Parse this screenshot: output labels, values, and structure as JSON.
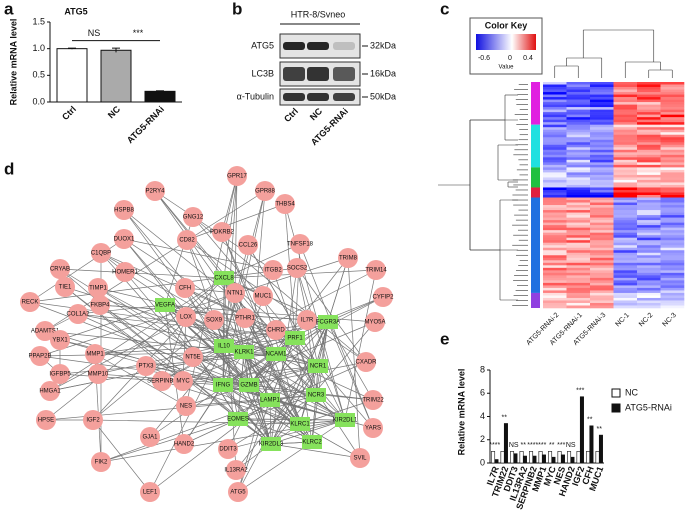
{
  "panel_labels": [
    "a",
    "b",
    "c",
    "d",
    "e"
  ],
  "chart_data": [
    {
      "type": "bar",
      "title": "ATG5",
      "ylabel": "Relative mRNA level",
      "categories": [
        "Ctrl",
        "NC",
        "ATG5-RNAi"
      ],
      "values": [
        1.0,
        0.97,
        0.2
      ],
      "errors": [
        0.01,
        0.04,
        0.01
      ],
      "colors": [
        "#ffffff",
        "#aaaaaa",
        "#111111"
      ],
      "ylim": [
        0,
        1.5
      ],
      "yticks": [
        {
          "value": 0,
          "label": "0.0"
        },
        {
          "value": 0.5,
          "label": "0.5"
        },
        {
          "value": 1.0,
          "label": "1.0"
        },
        {
          "value": 1.5,
          "label": "1.5"
        }
      ],
      "annotations": [
        "NS",
        "***"
      ]
    },
    {
      "type": "grouped-bar",
      "ylabel": "Relative mRNA level",
      "categories": [
        "IL7R",
        "TRIM22",
        "DDIT3",
        "IL13RA2",
        "SERPINB2",
        "MMP1",
        "MYC",
        "NES",
        "HAND2",
        "IGF2",
        "CFH",
        "MUC1"
      ],
      "series": [
        {
          "name": "NC",
          "color": "#ffffff",
          "values": [
            1,
            1,
            1,
            1,
            1,
            1,
            1,
            1,
            1,
            1,
            1,
            1
          ]
        },
        {
          "name": "ATG5-RNAi",
          "color": "#111111",
          "values": [
            0.3,
            3.4,
            0.8,
            0.6,
            0.6,
            0.7,
            0.5,
            0.7,
            0.5,
            5.7,
            3.2,
            2.4
          ]
        }
      ],
      "significance": [
        "****",
        "**",
        "NS",
        "**",
        "****",
        "***",
        "**",
        "***",
        "NS",
        "***",
        "**",
        "**"
      ],
      "ylim": [
        0,
        8
      ],
      "yticks": [
        0,
        2,
        4,
        6,
        8
      ],
      "legend": "right"
    }
  ],
  "blot": {
    "title": "HTR-8/Svneo",
    "rows": [
      "ATG5",
      "LC3B",
      "α-Tubulin"
    ],
    "sizes": [
      "32kDa",
      "16kDa",
      "50kDa"
    ],
    "lanes": [
      "Ctrl",
      "NC",
      "ATG5-RNAi"
    ]
  },
  "heatmap": {
    "key_title": "Color Key",
    "key_ticks": [
      "-0.6",
      "0",
      "0.4"
    ],
    "key_label": "Value",
    "columns": [
      "ATG5-RNAi-2",
      "ATG5-RNAi-1",
      "ATG5-RNAi-3",
      "NC-1",
      "NC-2",
      "NC-3"
    ]
  },
  "network": {
    "nodes": [
      {
        "label": "GPR17",
        "shape": "circle"
      },
      {
        "label": "P2RY4",
        "shape": "circle"
      },
      {
        "label": "GPR88",
        "shape": "circle"
      },
      {
        "label": "HSPB8",
        "shape": "circle"
      },
      {
        "label": "GNG12",
        "shape": "circle"
      },
      {
        "label": "THBS4",
        "shape": "circle"
      },
      {
        "label": "CD82",
        "shape": "circle"
      },
      {
        "label": "DUOX1",
        "shape": "circle"
      },
      {
        "label": "PDKRB2",
        "shape": "circle"
      },
      {
        "label": "CCL26",
        "shape": "circle"
      },
      {
        "label": "TNFSF18",
        "shape": "circle"
      },
      {
        "label": "TRIM8",
        "shape": "circle"
      },
      {
        "label": "C1QBP",
        "shape": "circle"
      },
      {
        "label": "CRYAB",
        "shape": "circle"
      },
      {
        "label": "HOMER1",
        "shape": "circle"
      },
      {
        "label": "CXCL8",
        "shape": "square"
      },
      {
        "label": "CFH",
        "shape": "circle"
      },
      {
        "label": "ITGB2",
        "shape": "circle"
      },
      {
        "label": "SOCS2",
        "shape": "circle"
      },
      {
        "label": "TRIM14",
        "shape": "circle"
      },
      {
        "label": "TIE1",
        "shape": "circle"
      },
      {
        "label": "TIMP1",
        "shape": "circle"
      },
      {
        "label": "FKBP4",
        "shape": "circle"
      },
      {
        "label": "NTN1",
        "shape": "circle"
      },
      {
        "label": "MUC1",
        "shape": "circle"
      },
      {
        "label": "CYFIP2",
        "shape": "circle"
      },
      {
        "label": "RECK",
        "shape": "circle"
      },
      {
        "label": "COL1A2",
        "shape": "circle"
      },
      {
        "label": "LOX",
        "shape": "circle"
      },
      {
        "label": "SOX9",
        "shape": "circle"
      },
      {
        "label": "PTHR1",
        "shape": "circle"
      },
      {
        "label": "IL7R",
        "shape": "circle"
      },
      {
        "label": "CHRD",
        "shape": "circle"
      },
      {
        "label": "FCGR3A",
        "shape": "square"
      },
      {
        "label": "MYO5A",
        "shape": "circle"
      },
      {
        "label": "ADAMTS1",
        "shape": "circle"
      },
      {
        "label": "YBX1",
        "shape": "circle"
      },
      {
        "label": "MMP1",
        "shape": "circle"
      },
      {
        "label": "VEGFA",
        "shape": "square"
      },
      {
        "label": "NT5E",
        "shape": "circle"
      },
      {
        "label": "IL10",
        "shape": "square"
      },
      {
        "label": "KLRK1",
        "shape": "square"
      },
      {
        "label": "NCAM1",
        "shape": "square"
      },
      {
        "label": "PRF1",
        "shape": "square"
      },
      {
        "label": "CXADR",
        "shape": "circle"
      },
      {
        "label": "PPAP2B",
        "shape": "circle"
      },
      {
        "label": "IGFBP5",
        "shape": "circle"
      },
      {
        "label": "MMP10",
        "shape": "circle"
      },
      {
        "label": "PTX3",
        "shape": "circle"
      },
      {
        "label": "SERPINB2",
        "shape": "circle"
      },
      {
        "label": "MYC",
        "shape": "circle"
      },
      {
        "label": "IFNG",
        "shape": "square"
      },
      {
        "label": "GZMB",
        "shape": "square"
      },
      {
        "label": "NCR1",
        "shape": "square"
      },
      {
        "label": "HMGA1",
        "shape": "circle"
      },
      {
        "label": "NCR3",
        "shape": "square"
      },
      {
        "label": "TRIM22",
        "shape": "circle"
      },
      {
        "label": "HPSE",
        "shape": "circle"
      },
      {
        "label": "IGF2",
        "shape": "circle"
      },
      {
        "label": "NES",
        "shape": "circle"
      },
      {
        "label": "EOMES",
        "shape": "square"
      },
      {
        "label": "LAMP1",
        "shape": "square"
      },
      {
        "label": "KLRC1",
        "shape": "square"
      },
      {
        "label": "KIR2DL1",
        "shape": "square"
      },
      {
        "label": "KLRC2",
        "shape": "square"
      },
      {
        "label": "KIR2DL3",
        "shape": "square"
      },
      {
        "label": "YARS",
        "shape": "circle"
      },
      {
        "label": "FIK2",
        "shape": "circle"
      },
      {
        "label": "GJA1",
        "shape": "circle"
      },
      {
        "label": "HAND2",
        "shape": "circle"
      },
      {
        "label": "DDIT3",
        "shape": "circle"
      },
      {
        "label": "IL13RA2",
        "shape": "circle"
      },
      {
        "label": "SVIL",
        "shape": "circle"
      },
      {
        "label": "LEF1",
        "shape": "circle"
      },
      {
        "label": "ATG5",
        "shape": "circle"
      }
    ],
    "circle_color": "#f4a09c",
    "square_color": "#86e25c"
  }
}
